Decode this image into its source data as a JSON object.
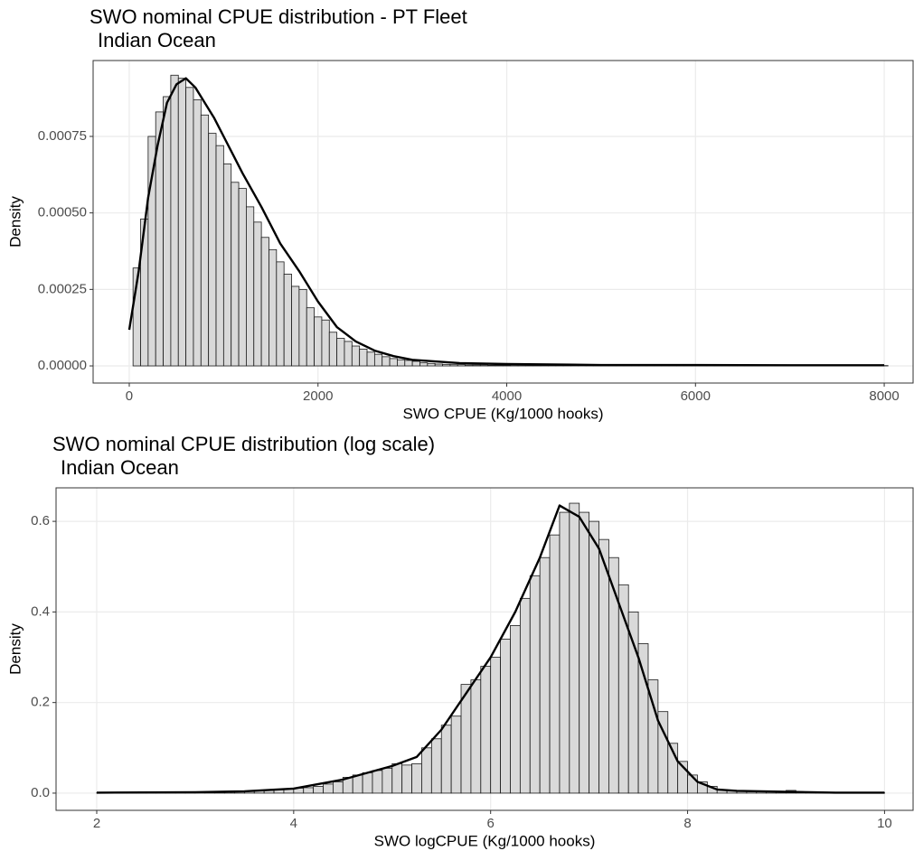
{
  "chart_data": [
    {
      "type": "histogram",
      "title": "SWO nominal CPUE distribution - PT Fleet",
      "subtitle": "Indian Ocean",
      "xlabel": "SWO CPUE (Kg/1000 hooks)",
      "ylabel": "Density",
      "bins": [
        40,
        120,
        200,
        280,
        360,
        440,
        520,
        600,
        680,
        760,
        840,
        920,
        1000,
        1080,
        1160,
        1240,
        1320,
        1400,
        1480,
        1560,
        1640,
        1720,
        1800,
        1880,
        1960,
        2040,
        2120,
        2200,
        2280,
        2360,
        2440,
        2520,
        2600,
        2680,
        2760,
        2840,
        2920,
        3000,
        3080,
        3160,
        3240,
        3320,
        3400,
        3480,
        3560,
        3640,
        3720,
        3800,
        3880,
        3960,
        4040,
        4120,
        4200,
        4280,
        4360,
        4440,
        4520,
        4600,
        4680,
        4760,
        4840,
        4920,
        5000,
        5080,
        5160,
        5240,
        5320,
        5400,
        5480,
        5560,
        5640,
        5720,
        5800,
        5880,
        5960,
        6040,
        6120,
        6200,
        6280,
        6360,
        6440,
        6520,
        6600,
        6680,
        6760,
        6840,
        6920,
        7000,
        7080,
        7160,
        7240,
        7320,
        7400,
        7480,
        7560,
        7640,
        7720,
        7800,
        7880,
        7960,
        8040
      ],
      "values": [
        0.00032,
        0.00048,
        0.00075,
        0.00083,
        0.00088,
        0.00095,
        0.00094,
        0.00091,
        0.00087,
        0.00082,
        0.00076,
        0.00072,
        0.00066,
        0.0006,
        0.00058,
        0.00052,
        0.00047,
        0.00042,
        0.00038,
        0.00034,
        0.0003,
        0.00026,
        0.00025,
        0.00019,
        0.00016,
        0.00015,
        0.00011,
        9e-05,
        8e-05,
        6.5e-05,
        5.5e-05,
        4.5e-05,
        3.8e-05,
        3e-05,
        2.4e-05,
        2e-05,
        1.8e-05,
        1.5e-05,
        1e-05,
        8e-06,
        6e-06,
        5e-06,
        4e-06,
        4e-06,
        3e-06,
        3e-06,
        3e-06,
        2e-06,
        2e-06,
        2e-06,
        1e-06,
        1e-06,
        1e-06,
        1e-06,
        1e-06,
        1e-06,
        1e-06,
        1e-06,
        1e-06,
        1e-06,
        1e-06,
        1e-06,
        1e-06,
        1e-06,
        1e-06,
        1e-06,
        1e-06,
        1e-06,
        1e-06,
        1e-06,
        1e-06,
        1e-06,
        1e-06,
        1e-06,
        1e-06,
        1e-06,
        1e-06,
        1e-06,
        1e-06,
        1e-06,
        1e-06,
        1e-06,
        1e-06,
        1e-06,
        1e-06,
        1e-06,
        1e-06,
        1e-06,
        1e-06,
        1e-06,
        1e-06,
        1e-06,
        1e-06,
        1e-06,
        1e-06,
        1e-06,
        1e-06,
        1e-06,
        1e-06,
        1e-06
      ],
      "color": "#d9d9d9",
      "edgecolor": "#1a1a1a",
      "line": {
        "x": [
          0,
          100,
          200,
          300,
          400,
          500,
          600,
          700,
          800,
          900,
          1000,
          1200,
          1400,
          1600,
          1800,
          2000,
          2200,
          2400,
          2600,
          2800,
          3000,
          3500,
          4000,
          5000,
          6000,
          7000,
          8000
        ],
        "y": [
          0.000118,
          0.00031,
          0.00055,
          0.00072,
          0.00086,
          0.00092,
          0.00094,
          0.00091,
          0.00086,
          0.00081,
          0.00075,
          0.00063,
          0.00052,
          0.0004,
          0.00031,
          0.00021,
          0.000127,
          8e-05,
          5e-05,
          3.2e-05,
          2e-05,
          9e-06,
          6e-06,
          3e-06,
          3e-06,
          2e-06,
          2e-06
        ],
        "color": "#000000"
      },
      "xlim": [
        -383,
        8306
      ],
      "ylim": [
        -5.6e-05,
        0.000998
      ],
      "xticks": [
        0,
        2000,
        4000,
        6000,
        8000
      ],
      "yticks": [
        {
          "value": 0,
          "label": "0.00000"
        },
        0.00025,
        {
          "value": 0.0005,
          "label": "0.00050"
        },
        0.00075
      ],
      "grid": true
    },
    {
      "type": "histogram",
      "title": "SWO nominal CPUE distribution (log scale)",
      "subtitle": "Indian Ocean",
      "xlabel": "SWO logCPUE (Kg/1000 hooks)",
      "ylabel": "Density",
      "bins": [
        2,
        2.1,
        2.2,
        2.3,
        2.4,
        2.5,
        2.6,
        2.7,
        2.8,
        2.9,
        3,
        3.1,
        3.2,
        3.3,
        3.4,
        3.5,
        3.6,
        3.7,
        3.8,
        3.9,
        4,
        4.1,
        4.2,
        4.3,
        4.4,
        4.5,
        4.6,
        4.7,
        4.8,
        4.9,
        5,
        5.1,
        5.2,
        5.3,
        5.4,
        5.5,
        5.6,
        5.7,
        5.8,
        5.9,
        6,
        6.1,
        6.2,
        6.3,
        6.4,
        6.5,
        6.6,
        6.7,
        6.8,
        6.9,
        7,
        7.1,
        7.2,
        7.3,
        7.4,
        7.5,
        7.6,
        7.7,
        7.8,
        7.9,
        8,
        8.1,
        8.2,
        8.3,
        8.4,
        8.5,
        8.6,
        8.7,
        8.8,
        8.9,
        9,
        9.1,
        9.2,
        9.3,
        9.4,
        9.5,
        9.6,
        9.7,
        9.8,
        9.9,
        10
      ],
      "values": [
        0.001,
        0.001,
        0.001,
        0.001,
        0.001,
        0.002,
        0.002,
        0.002,
        0.002,
        0.002,
        0.002,
        0.002,
        0.003,
        0.003,
        0.003,
        0.004,
        0.005,
        0.006,
        0.008,
        0.01,
        0.011,
        0.012,
        0.015,
        0.02,
        0.025,
        0.035,
        0.04,
        0.045,
        0.05,
        0.055,
        0.065,
        0.062,
        0.065,
        0.1,
        0.12,
        0.15,
        0.17,
        0.24,
        0.25,
        0.28,
        0.3,
        0.34,
        0.37,
        0.43,
        0.48,
        0.52,
        0.57,
        0.62,
        0.64,
        0.62,
        0.6,
        0.56,
        0.52,
        0.46,
        0.4,
        0.33,
        0.25,
        0.18,
        0.11,
        0.07,
        0.04,
        0.025,
        0.015,
        0.008,
        0.006,
        0.005,
        0.004,
        0.003,
        0.003,
        0.003,
        0.006,
        0.002,
        0.001,
        0.001,
        0.001,
        0.001,
        0.001,
        0.001,
        0.001,
        0.001
      ],
      "color": "#d9d9d9",
      "edgecolor": "#1a1a1a",
      "line": {
        "x": [
          2,
          3,
          3.5,
          4,
          4.5,
          5,
          5.25,
          5.5,
          5.75,
          6,
          6.25,
          6.5,
          6.7,
          6.9,
          7.1,
          7.3,
          7.5,
          7.7,
          7.9,
          8.1,
          8.3,
          8.5,
          9,
          9.5,
          10
        ],
        "y": [
          0.001,
          0.002,
          0.004,
          0.01,
          0.03,
          0.06,
          0.08,
          0.14,
          0.22,
          0.3,
          0.4,
          0.52,
          0.635,
          0.61,
          0.54,
          0.42,
          0.3,
          0.16,
          0.07,
          0.025,
          0.008,
          0.005,
          0.003,
          0.001,
          0.001
        ],
        "color": "#000000"
      },
      "xlim": [
        1.587,
        10.29
      ],
      "ylim": [
        -0.038,
        0.674
      ],
      "xticks": [
        2,
        4,
        6,
        8,
        10
      ],
      "yticks": [
        {
          "value": 0,
          "label": "0.0"
        },
        0.2,
        0.4,
        0.6
      ],
      "grid": true
    }
  ]
}
